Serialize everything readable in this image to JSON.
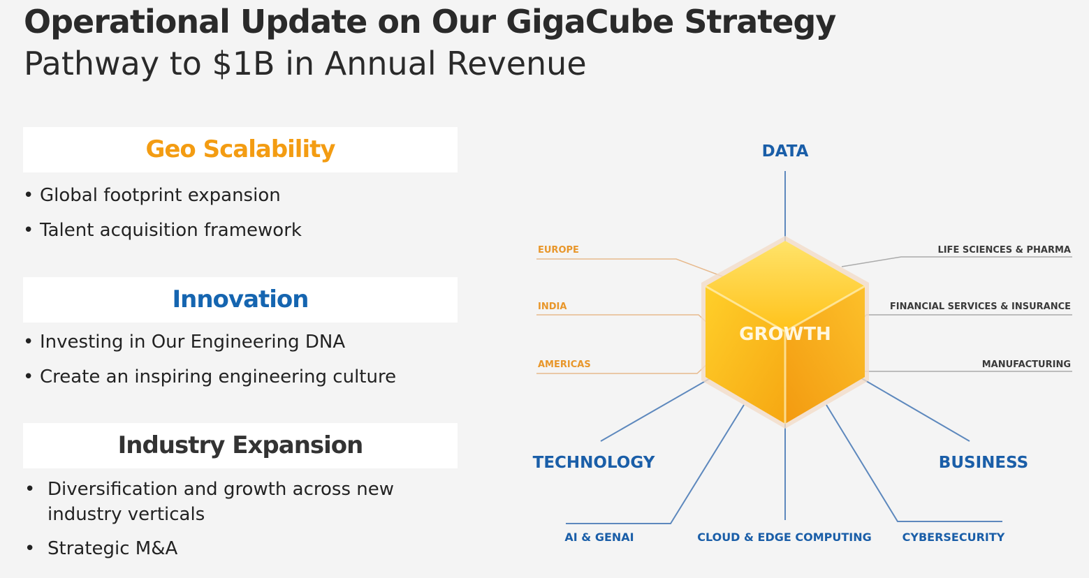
{
  "header": {
    "title": "Operational Update on Our GigaCube Strategy",
    "subtitle": "Pathway to $1B in Annual Revenue"
  },
  "sections": [
    {
      "title": "Geo Scalability",
      "bullets": [
        "Global footprint expansion",
        "Talent acquisition framework"
      ]
    },
    {
      "title": "Innovation",
      "bullets": [
        "Investing in Our Engineering DNA",
        "Create an inspiring engineering culture"
      ]
    },
    {
      "title": "Industry Expansion",
      "bullets": [
        "Diversification and growth across new industry verticals",
        "Strategic M&A"
      ]
    }
  ],
  "diagram": {
    "center": "GROWTH",
    "axes": [
      "DATA",
      "TECHNOLOGY",
      "BUSINESS"
    ],
    "regions": [
      "EUROPE",
      "INDIA",
      "AMERICAS"
    ],
    "industries": [
      "LIFE SCIENCES & PHARMA",
      "FINANCIAL SERVICES & INSURANCE",
      "MANUFACTURING"
    ],
    "technologies": [
      "AI & GENAI",
      "CLOUD & EDGE COMPUTING",
      "CYBERSECURITY"
    ]
  }
}
